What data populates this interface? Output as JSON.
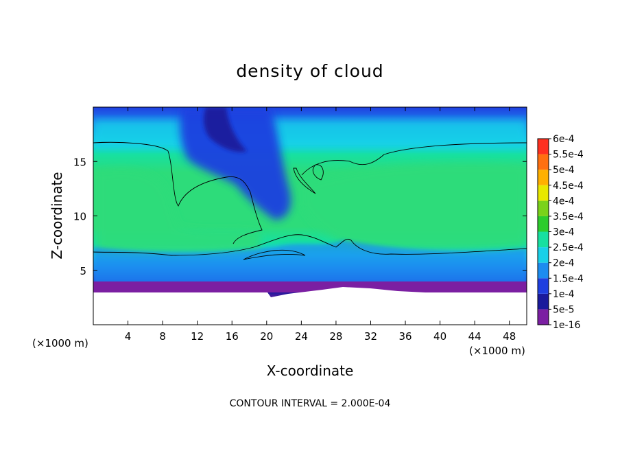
{
  "chart_data": {
    "type": "heatmap",
    "title": "density of cloud",
    "xlabel": "X-coordinate",
    "ylabel": "Z-coordinate",
    "x_unit_label": "(×1000 m)",
    "x_unit_label_right": "(×1000 m)",
    "xlim": [
      0,
      50
    ],
    "ylim": [
      0,
      20
    ],
    "x_ticks": [
      4,
      8,
      12,
      16,
      20,
      24,
      28,
      32,
      36,
      40,
      44,
      48
    ],
    "x_tick_labels": [
      "4",
      "8",
      "12",
      "16",
      "20",
      "24",
      "28",
      "32",
      "36",
      "40",
      "44",
      "48"
    ],
    "y_ticks": [
      5,
      10,
      15
    ],
    "y_tick_labels": [
      "5",
      "10",
      "15"
    ],
    "colorbar": {
      "labels": [
        "1e-16",
        "5e-5",
        "1e-4",
        "1.5e-4",
        "2e-4",
        "2.5e-4",
        "3e-4",
        "3.5e-4",
        "4e-4",
        "4.5e-4",
        "5e-4",
        "5.5e-4",
        "6e-4"
      ],
      "colors": [
        "#7b1fa2",
        "#1a1a9c",
        "#1f3fe0",
        "#1c8cf0",
        "#18d0e8",
        "#17e0a0",
        "#2dcc2d",
        "#7ad21a",
        "#e8e800",
        "#ffb000",
        "#ff7010",
        "#ff3020",
        "#ff8090"
      ]
    },
    "contour_interval_text": "CONTOUR INTERVAL = 2.000E-04",
    "fields": {
      "ground_top_z": 3.0,
      "layer_base_z": 6.5,
      "layer_top_z": 16.8,
      "core_value": 0.00023
    }
  }
}
